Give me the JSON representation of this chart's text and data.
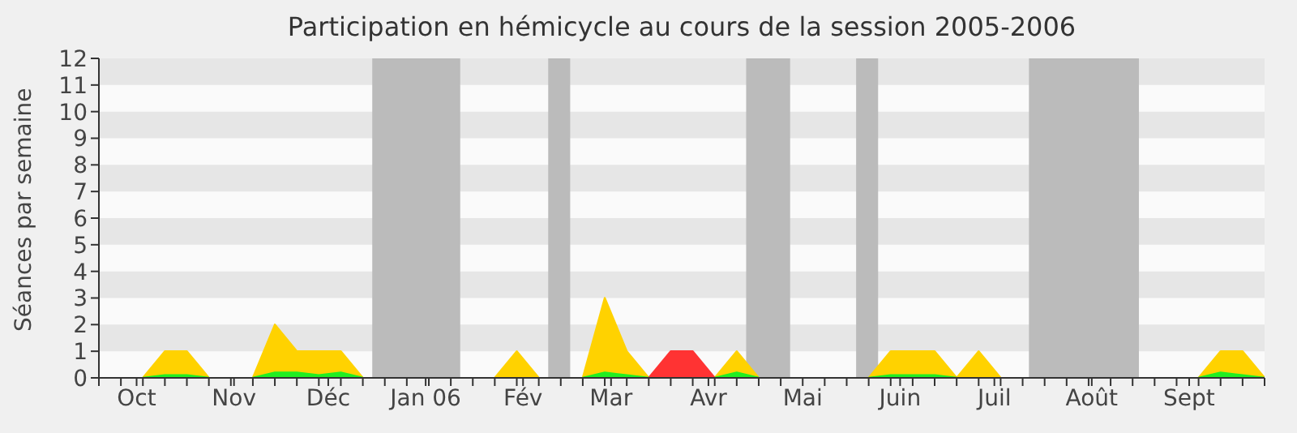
{
  "chart_data": {
    "type": "area",
    "title": "Participation en hémicycle au cours de la session 2005-2006",
    "ylabel": "Séances par semaine",
    "x": [
      "2005-10-03",
      "2005-10-10",
      "2005-10-17",
      "2005-10-24",
      "2005-10-31",
      "2005-11-07",
      "2005-11-14",
      "2005-11-21",
      "2005-11-28",
      "2005-12-05",
      "2005-12-12",
      "2005-12-19",
      "2005-12-26",
      "2006-01-02",
      "2006-01-09",
      "2006-01-16",
      "2006-01-23",
      "2006-01-30",
      "2006-02-06",
      "2006-02-13",
      "2006-02-20",
      "2006-02-27",
      "2006-03-06",
      "2006-03-13",
      "2006-03-20",
      "2006-03-27",
      "2006-04-03",
      "2006-04-10",
      "2006-04-17",
      "2006-04-24",
      "2006-05-01",
      "2006-05-08",
      "2006-05-15",
      "2006-05-22",
      "2006-05-29",
      "2006-06-05",
      "2006-06-12",
      "2006-06-19",
      "2006-06-26",
      "2006-07-03",
      "2006-07-10",
      "2006-07-17",
      "2006-07-24",
      "2006-07-31",
      "2006-08-07",
      "2006-08-14",
      "2006-08-21",
      "2006-08-28",
      "2006-09-04",
      "2006-09-11",
      "2006-09-18",
      "2006-09-25"
    ],
    "series": [
      {
        "color": "#ffd200",
        "values": [
          0,
          1,
          1,
          0,
          null,
          0,
          2,
          1,
          1,
          1,
          0,
          null,
          null,
          null,
          null,
          null,
          0,
          1,
          0,
          null,
          0,
          3,
          1,
          0,
          null,
          null,
          0,
          1,
          0,
          null,
          null,
          null,
          null,
          0,
          1,
          1,
          1,
          0,
          1,
          0,
          null,
          null,
          null,
          null,
          null,
          null,
          null,
          null,
          0,
          1,
          1,
          0
        ]
      },
      {
        "color": "#ff3333",
        "values": [
          null,
          null,
          null,
          null,
          null,
          null,
          null,
          null,
          null,
          null,
          null,
          null,
          null,
          null,
          null,
          null,
          null,
          null,
          null,
          null,
          null,
          null,
          null,
          0,
          1,
          1,
          0,
          null,
          null,
          null,
          null,
          null,
          null,
          null,
          null,
          null,
          null,
          null,
          null,
          null,
          null,
          null,
          null,
          null,
          null,
          null,
          null,
          null,
          null,
          null,
          null,
          null
        ]
      },
      {
        "color": "#22ee22",
        "values": [
          0,
          0.1,
          0.1,
          0,
          null,
          0,
          0.2,
          0.2,
          0.1,
          0.2,
          0,
          null,
          null,
          null,
          null,
          null,
          null,
          null,
          null,
          null,
          0,
          0.2,
          0.1,
          0,
          null,
          null,
          0,
          0.2,
          0,
          null,
          null,
          null,
          null,
          0,
          0.1,
          0.1,
          0.1,
          0,
          null,
          null,
          null,
          null,
          null,
          null,
          null,
          null,
          null,
          null,
          0,
          0.2,
          0.1,
          0
        ]
      }
    ],
    "xlim": [
      "2005-09-19",
      "2006-09-25"
    ],
    "xticks": [
      {
        "value": "2005-09-19",
        "label": null
      },
      {
        "value": "2005-09-26",
        "label": null
      },
      {
        "value": "2005-10-03",
        "label": null
      },
      {
        "value": "2005-10-01",
        "label": "Oct"
      },
      {
        "value": "2005-10-10",
        "label": null
      },
      {
        "value": "2005-10-17",
        "label": null
      },
      {
        "value": "2005-10-24",
        "label": null
      },
      {
        "value": "2005-10-31",
        "label": null
      },
      {
        "value": "2005-11-07",
        "label": null
      },
      {
        "value": "2005-11-01",
        "label": "Nov"
      },
      {
        "value": "2005-11-14",
        "label": null
      },
      {
        "value": "2005-11-21",
        "label": null
      },
      {
        "value": "2005-11-28",
        "label": null
      },
      {
        "value": "2005-12-05",
        "label": null
      },
      {
        "value": "2005-12-01",
        "label": "Déc"
      },
      {
        "value": "2005-12-12",
        "label": null
      },
      {
        "value": "2005-12-19",
        "label": null
      },
      {
        "value": "2005-12-26",
        "label": null
      },
      {
        "value": "2006-01-02",
        "label": null
      },
      {
        "value": "2006-01-01",
        "label": "Jan 06"
      },
      {
        "value": "2006-01-09",
        "label": null
      },
      {
        "value": "2006-01-16",
        "label": null
      },
      {
        "value": "2006-01-23",
        "label": null
      },
      {
        "value": "2006-01-30",
        "label": null
      },
      {
        "value": "2006-02-01",
        "label": "Fév"
      },
      {
        "value": "2006-02-06",
        "label": null
      },
      {
        "value": "2006-02-13",
        "label": null
      },
      {
        "value": "2006-02-20",
        "label": null
      },
      {
        "value": "2006-02-27",
        "label": null
      },
      {
        "value": "2006-03-01",
        "label": "Mar"
      },
      {
        "value": "2006-03-06",
        "label": null
      },
      {
        "value": "2006-03-13",
        "label": null
      },
      {
        "value": "2006-03-20",
        "label": null
      },
      {
        "value": "2006-03-27",
        "label": null
      },
      {
        "value": "2006-04-03",
        "label": null
      },
      {
        "value": "2006-04-01",
        "label": "Avr"
      },
      {
        "value": "2006-04-10",
        "label": null
      },
      {
        "value": "2006-04-17",
        "label": null
      },
      {
        "value": "2006-04-24",
        "label": null
      },
      {
        "value": "2006-05-01",
        "label": null
      },
      {
        "value": "2006-05-01",
        "label": "Mai"
      },
      {
        "value": "2006-05-08",
        "label": null
      },
      {
        "value": "2006-05-15",
        "label": null
      },
      {
        "value": "2006-05-22",
        "label": null
      },
      {
        "value": "2006-05-29",
        "label": null
      },
      {
        "value": "2006-06-05",
        "label": null
      },
      {
        "value": "2006-06-01",
        "label": "Juin"
      },
      {
        "value": "2006-06-12",
        "label": null
      },
      {
        "value": "2006-06-19",
        "label": null
      },
      {
        "value": "2006-06-26",
        "label": null
      },
      {
        "value": "2006-07-03",
        "label": null
      },
      {
        "value": "2006-07-01",
        "label": "Juil"
      },
      {
        "value": "2006-07-10",
        "label": null
      },
      {
        "value": "2006-07-17",
        "label": null
      },
      {
        "value": "2006-07-24",
        "label": null
      },
      {
        "value": "2006-07-31",
        "label": null
      },
      {
        "value": "2006-08-07",
        "label": null
      },
      {
        "value": "2006-08-01",
        "label": "Août"
      },
      {
        "value": "2006-08-14",
        "label": null
      },
      {
        "value": "2006-08-21",
        "label": null
      },
      {
        "value": "2006-08-28",
        "label": null
      },
      {
        "value": "2006-09-04",
        "label": null
      },
      {
        "value": "2006-09-11",
        "label": null
      },
      {
        "value": "2006-09-01",
        "label": "Sept"
      },
      {
        "value": "2006-09-18",
        "label": null
      },
      {
        "value": "2006-09-25",
        "label": null
      }
    ],
    "ylim": [
      0,
      12
    ],
    "yticks": [
      0,
      1,
      2,
      3,
      4,
      5,
      6,
      7,
      8,
      9,
      10,
      11,
      12
    ],
    "bands": [
      {
        "axis": "y",
        "from": 1,
        "to": 2,
        "color": "#e6e6e6"
      },
      {
        "axis": "y",
        "from": 3,
        "to": 4,
        "color": "#e6e6e6"
      },
      {
        "axis": "y",
        "from": 5,
        "to": 6,
        "color": "#e6e6e6"
      },
      {
        "axis": "y",
        "from": 7,
        "to": 8,
        "color": "#e6e6e6"
      },
      {
        "axis": "y",
        "from": 9,
        "to": 10,
        "color": "#e6e6e6"
      },
      {
        "axis": "y",
        "from": 11,
        "to": 12,
        "color": "#e6e6e6"
      },
      {
        "axis": "x",
        "from": "2005-12-15",
        "to": "2006-01-12",
        "color": "#bbbbbb"
      },
      {
        "axis": "x",
        "from": "2006-02-09",
        "to": "2006-02-16",
        "color": "#bbbbbb"
      },
      {
        "axis": "x",
        "from": "2006-04-13",
        "to": "2006-04-27",
        "color": "#bbbbbb"
      },
      {
        "axis": "x",
        "from": "2006-05-18",
        "to": "2006-05-25",
        "color": "#bbbbbb"
      },
      {
        "axis": "x",
        "from": "2006-07-12",
        "to": "2006-08-16",
        "color": "#bbbbbb"
      }
    ]
  }
}
